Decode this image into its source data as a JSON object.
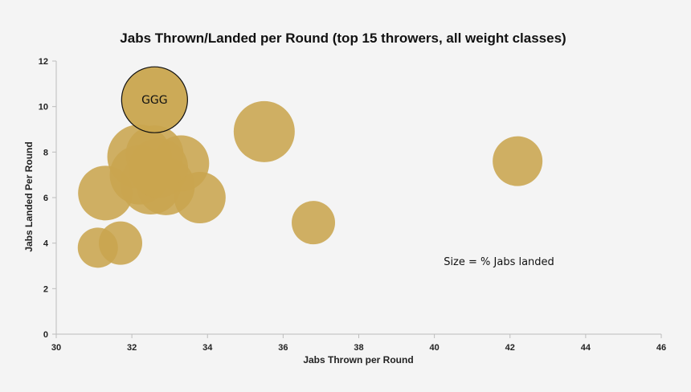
{
  "chart_data": {
    "type": "scatter",
    "subtype": "bubble",
    "title": "Jabs Thrown/Landed per Round (top 15 throwers, all weight classes)",
    "xlabel": "Jabs Thrown per Round",
    "ylabel": "Jabs Landed Per Round",
    "xlim": [
      30,
      46
    ],
    "ylim": [
      0,
      12
    ],
    "xticks": [
      30,
      32,
      34,
      36,
      38,
      40,
      42,
      44,
      46
    ],
    "yticks": [
      0,
      2,
      4,
      6,
      8,
      10,
      12
    ],
    "grid": false,
    "bubble_color": "#c9a54e",
    "highlight_stroke": "#111111",
    "annotation": "Size = % Jabs landed",
    "points": [
      {
        "x": 31.1,
        "y": 3.8,
        "size": 0.25,
        "label": ""
      },
      {
        "x": 31.7,
        "y": 4.0,
        "size": 0.27,
        "label": ""
      },
      {
        "x": 31.3,
        "y": 6.2,
        "size": 0.34,
        "label": ""
      },
      {
        "x": 32.2,
        "y": 7.8,
        "size": 0.4,
        "label": ""
      },
      {
        "x": 32.2,
        "y": 7.0,
        "size": 0.37,
        "label": ""
      },
      {
        "x": 32.5,
        "y": 6.6,
        "size": 0.38,
        "label": ""
      },
      {
        "x": 32.9,
        "y": 6.5,
        "size": 0.36,
        "label": ""
      },
      {
        "x": 33.3,
        "y": 7.5,
        "size": 0.35,
        "label": ""
      },
      {
        "x": 32.6,
        "y": 7.9,
        "size": 0.36,
        "label": ""
      },
      {
        "x": 32.7,
        "y": 7.3,
        "size": 0.37,
        "label": ""
      },
      {
        "x": 33.8,
        "y": 6.0,
        "size": 0.32,
        "label": ""
      },
      {
        "x": 35.5,
        "y": 8.9,
        "size": 0.38,
        "label": ""
      },
      {
        "x": 36.8,
        "y": 4.9,
        "size": 0.27,
        "label": ""
      },
      {
        "x": 42.2,
        "y": 7.6,
        "size": 0.31,
        "label": ""
      },
      {
        "x": 32.6,
        "y": 10.3,
        "size": 0.41,
        "label": "GGG",
        "highlight": true
      }
    ]
  }
}
